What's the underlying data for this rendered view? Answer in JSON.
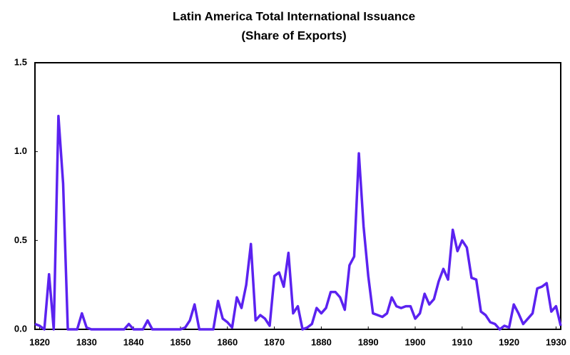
{
  "chart_data": {
    "type": "line",
    "title": "Latin America Total International Issuance",
    "subtitle": "(Share of Exports)",
    "x": [
      1819,
      1820,
      1821,
      1822,
      1823,
      1824,
      1825,
      1826,
      1827,
      1828,
      1829,
      1830,
      1831,
      1832,
      1833,
      1834,
      1835,
      1836,
      1837,
      1838,
      1839,
      1840,
      1841,
      1842,
      1843,
      1844,
      1845,
      1846,
      1847,
      1848,
      1849,
      1850,
      1851,
      1852,
      1853,
      1854,
      1855,
      1856,
      1857,
      1858,
      1859,
      1860,
      1861,
      1862,
      1863,
      1864,
      1865,
      1866,
      1867,
      1868,
      1869,
      1870,
      1871,
      1872,
      1873,
      1874,
      1875,
      1876,
      1877,
      1878,
      1879,
      1880,
      1881,
      1882,
      1883,
      1884,
      1885,
      1886,
      1887,
      1888,
      1889,
      1890,
      1891,
      1892,
      1893,
      1894,
      1895,
      1896,
      1897,
      1898,
      1899,
      1900,
      1901,
      1902,
      1903,
      1904,
      1905,
      1906,
      1907,
      1908,
      1909,
      1910,
      1911,
      1912,
      1913,
      1914,
      1915,
      1916,
      1917,
      1918,
      1919,
      1920,
      1921,
      1922,
      1923,
      1924,
      1925,
      1926,
      1927,
      1928,
      1929,
      1930,
      1931
    ],
    "values": [
      0.03,
      0.02,
      0,
      0.31,
      0,
      1.2,
      0.82,
      0,
      0,
      0,
      0.09,
      0.01,
      0,
      0,
      0,
      0,
      0,
      0,
      0,
      0,
      0.03,
      0,
      0,
      0,
      0.05,
      0,
      0,
      0,
      0,
      0,
      0,
      0,
      0.01,
      0.05,
      0.14,
      0,
      0,
      0,
      0,
      0.16,
      0.06,
      0.04,
      0.01,
      0.18,
      0.12,
      0.25,
      0.48,
      0.05,
      0.08,
      0.06,
      0.02,
      0.3,
      0.32,
      0.24,
      0.43,
      0.09,
      0.13,
      0,
      0.01,
      0.03,
      0.12,
      0.09,
      0.12,
      0.21,
      0.21,
      0.18,
      0.11,
      0.36,
      0.41,
      0.99,
      0.58,
      0.3,
      0.09,
      0.08,
      0.07,
      0.09,
      0.18,
      0.13,
      0.12,
      0.13,
      0.13,
      0.06,
      0.09,
      0.2,
      0.14,
      0.17,
      0.27,
      0.34,
      0.28,
      0.56,
      0.44,
      0.5,
      0.46,
      0.29,
      0.28,
      0.1,
      0.08,
      0.04,
      0.03,
      0,
      0.02,
      0.01,
      0.14,
      0.09,
      0.03,
      0.06,
      0.09,
      0.23,
      0.24,
      0.26,
      0.1,
      0.13,
      0.02
    ],
    "color": "#5b22f0",
    "xlim": [
      1819,
      1931
    ],
    "xticks": [
      1820,
      1830,
      1840,
      1850,
      1860,
      1870,
      1880,
      1890,
      1900,
      1910,
      1920,
      1930
    ],
    "ylim": [
      0,
      1.5
    ],
    "yticks": [
      {
        "value": 0,
        "label": "0.0"
      },
      0.5,
      {
        "value": 1,
        "label": "1.0"
      },
      1.5
    ]
  }
}
